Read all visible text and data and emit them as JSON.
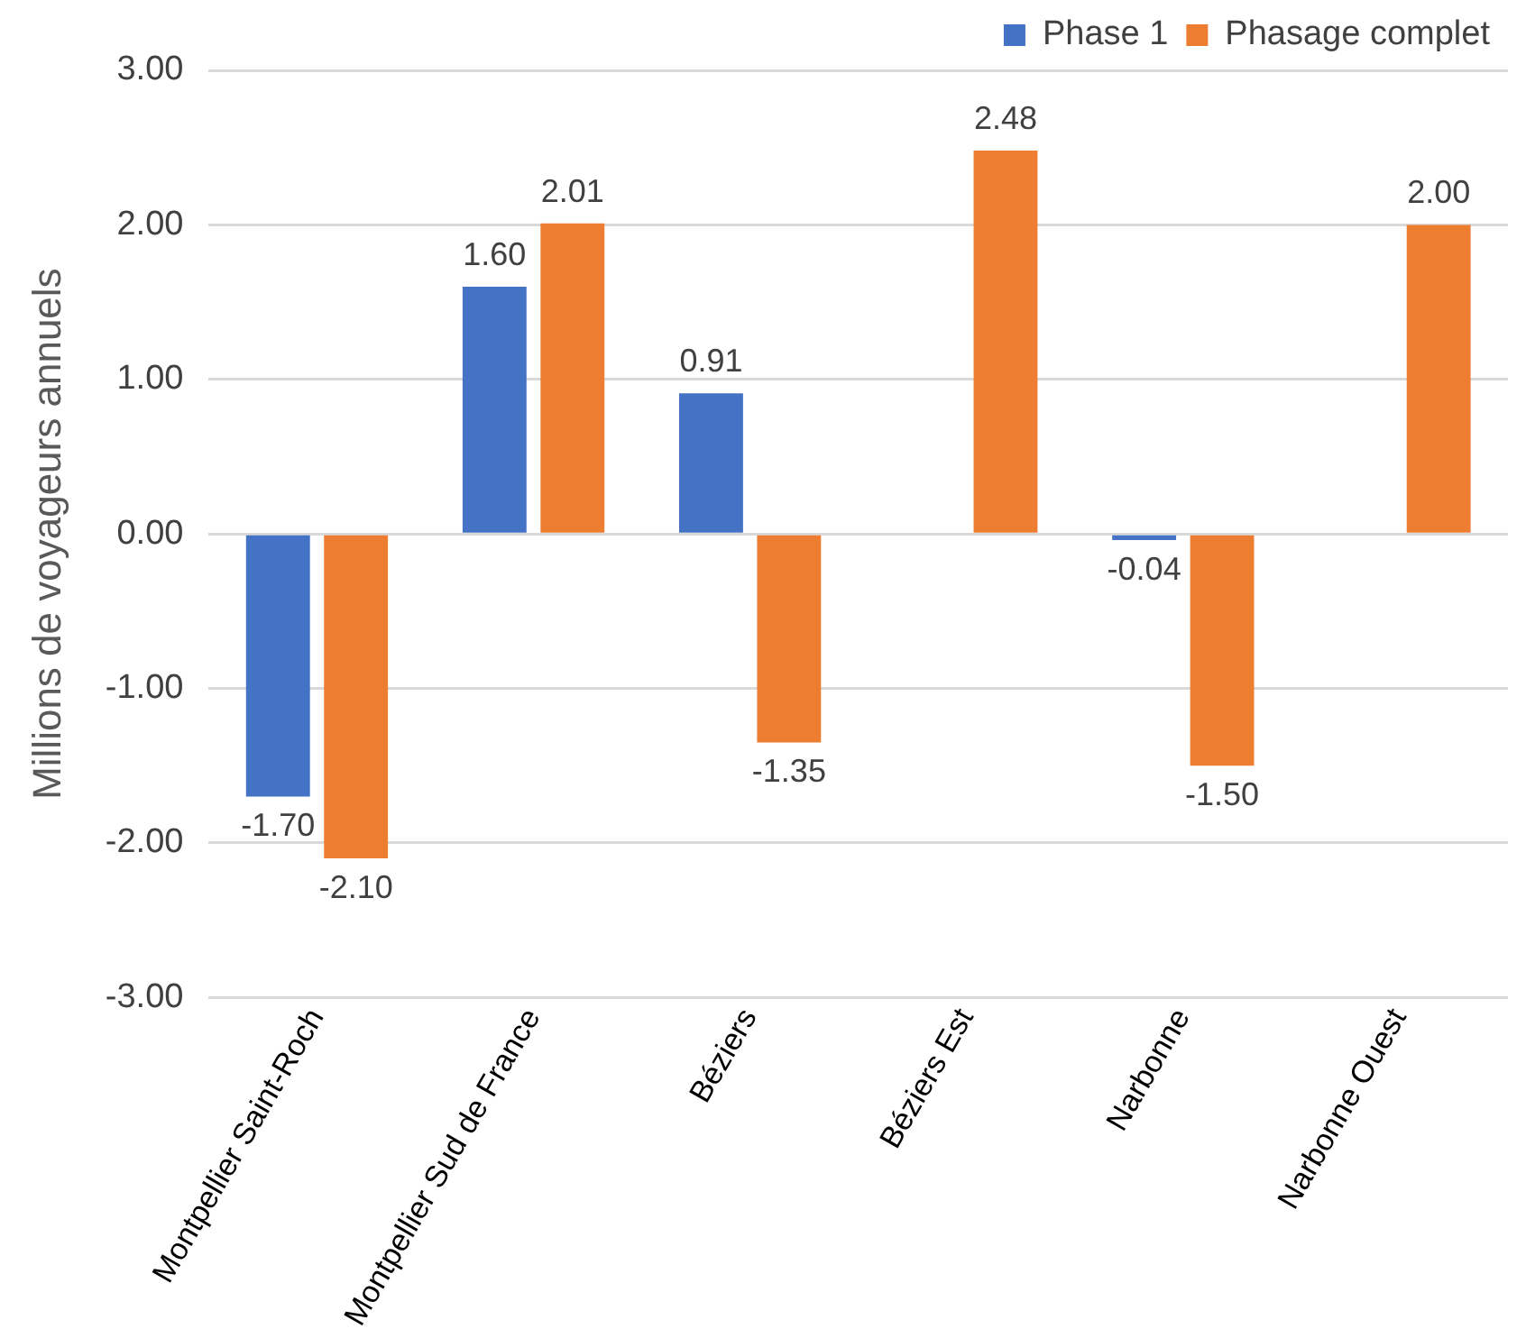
{
  "chart_data": {
    "type": "bar",
    "ylabel": "Millions de voyageurs annuels",
    "categories": [
      "Montpellier Saint-Roch",
      "Montpellier Sud de France",
      "Béziers",
      "Béziers Est",
      "Narbonne",
      "Narbonne Ouest"
    ],
    "series": [
      {
        "name": "Phase 1",
        "color": "#4472c4",
        "values": [
          -1.7,
          1.6,
          0.91,
          null,
          -0.04,
          null
        ],
        "value_labels": [
          "-1.70",
          "1.60",
          "0.91",
          null,
          "-0.04",
          null
        ]
      },
      {
        "name": "Phasage complet",
        "color": "#ed7d31",
        "values": [
          -2.1,
          2.01,
          -1.35,
          2.48,
          -1.5,
          2.0
        ],
        "value_labels": [
          "-2.10",
          "2.01",
          "-1.35",
          "2.48",
          "-1.50",
          "2.00"
        ]
      }
    ],
    "ylim": [
      -3,
      3
    ],
    "yticks": [
      {
        "value": -3,
        "label": "-3.00"
      },
      {
        "value": -2,
        "label": "-2.00"
      },
      {
        "value": -1,
        "label": "-1.00"
      },
      {
        "value": 0,
        "label": "0.00"
      },
      {
        "value": 1,
        "label": "1.00"
      },
      {
        "value": 2,
        "label": "2.00"
      },
      {
        "value": 3,
        "label": "3.00"
      }
    ],
    "grid": "y",
    "legend": "top right"
  }
}
